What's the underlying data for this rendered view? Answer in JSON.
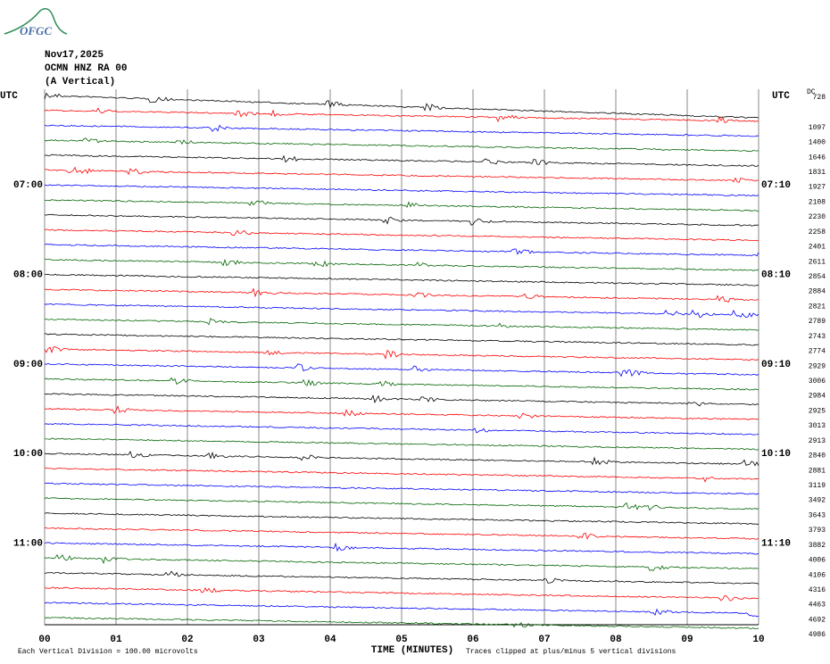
{
  "logo": "OFGC",
  "header": {
    "date": "Nov17,2025",
    "station": "OCMN HNZ RA 00",
    "component": "(A Vertical)"
  },
  "left_axis": {
    "title": "UTC",
    "labels": [
      "07:00",
      "08:00",
      "09:00",
      "10:00",
      "11:00"
    ]
  },
  "right_axis": {
    "title": "UTC",
    "labels": [
      "07:10",
      "08:10",
      "09:10",
      "10:10",
      "11:10"
    ]
  },
  "dc": {
    "title": "DC",
    "values": [
      728,
      1097,
      1400,
      1646,
      1831,
      1927,
      2108,
      2230,
      2258,
      2401,
      2611,
      2854,
      2884,
      2821,
      2789,
      2743,
      2774,
      2929,
      3006,
      2984,
      2925,
      3013,
      2913,
      2840,
      2881,
      3119,
      3492,
      3643,
      3793,
      3882,
      4006,
      4106,
      4316,
      4463,
      4692,
      4986
    ]
  },
  "x_axis": {
    "title": "TIME (MINUTES)",
    "ticks": [
      "00",
      "01",
      "02",
      "03",
      "04",
      "05",
      "06",
      "07",
      "08",
      "09",
      "10"
    ]
  },
  "footer": {
    "scale": "Each Vertical Division =  100.00 microvolts",
    "clip": "Traces clipped at plus/minus 5 vertical divisions"
  },
  "trace_colors": [
    "#000000",
    "#ff0000",
    "#0000ff",
    "#006400"
  ]
}
